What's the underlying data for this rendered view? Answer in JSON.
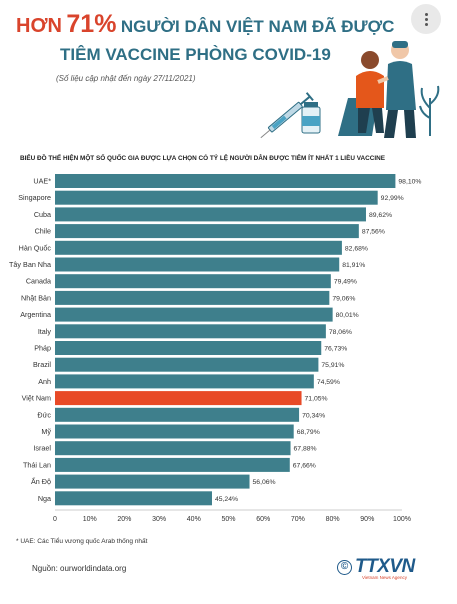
{
  "header": {
    "title_prefix": "HƠN",
    "title_percent": "71%",
    "title_rest": "NGƯỜI DÂN VIỆT NAM ĐÃ ĐƯỢC",
    "title_line2": "TIÊM VACCINE PHÒNG COVID-19",
    "subtitle": "(Số liệu cập nhật đến ngày 27/11/2021)"
  },
  "colors": {
    "bar": "#3e7f8c",
    "highlight": "#e84a27",
    "title": "#2f6f85",
    "accent": "#d9442c"
  },
  "menu": {
    "icon": "more-vertical-icon"
  },
  "chart_heading": "BIỂU ĐỒ THỂ HIỆN MỘT SỐ QUỐC GIA ĐƯỢC LỰA CHỌN CÓ TỶ LỆ NGƯỜI DÂN ĐƯỢC TIÊM  ÍT NHẤT 1 LIỀU VACCINE",
  "chart_data": {
    "type": "bar",
    "orientation": "horizontal",
    "categories": [
      "UAE*",
      "Singapore",
      "Cuba",
      "Chile",
      "Hàn Quốc",
      "Tây Ban Nha",
      "Canada",
      "Nhật Bản",
      "Argentina",
      "Italy",
      "Pháp",
      "Brazil",
      "Anh",
      "Việt Nam",
      "Đức",
      "Mỹ",
      "Israel",
      "Thái Lan",
      "Ấn Độ",
      "Nga"
    ],
    "values": [
      98.1,
      92.99,
      89.62,
      87.56,
      82.68,
      81.91,
      79.49,
      79.06,
      80.01,
      78.06,
      76.73,
      75.91,
      74.59,
      71.05,
      70.34,
      68.79,
      67.88,
      67.66,
      56.06,
      45.24
    ],
    "value_labels": [
      "98,10%",
      "92,99%",
      "89,62%",
      "87,56%",
      "82,68%",
      "81,91%",
      "79,49%",
      "79,06%",
      "80,01%",
      "78,06%",
      "76,73%",
      "75,91%",
      "74,59%",
      "71,05%",
      "70,34%",
      "68,79%",
      "67,88%",
      "67,66%",
      "56,06%",
      "45,24%"
    ],
    "highlight_category": "Việt Nam",
    "xlim": [
      0,
      100
    ],
    "x_ticks": [
      "0",
      "10%",
      "20%",
      "30%",
      "40%",
      "50%",
      "60%",
      "70%",
      "80%",
      "90%",
      "100%"
    ],
    "grid": false,
    "legend": "none"
  },
  "footnote": "* UAE: Các Tiểu vương quốc Arab thống nhất",
  "source": "Nguồn: ourworldindata.org",
  "logo": {
    "symbol": "©",
    "brand": "TTXVN",
    "tagline": "Vietnam News Agency"
  }
}
